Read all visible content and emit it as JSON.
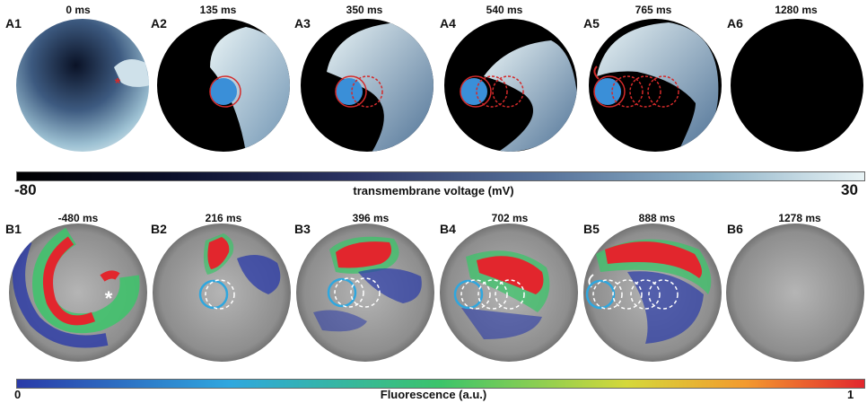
{
  "row_a": {
    "panels": [
      {
        "tag": "A1",
        "time": "0 ms"
      },
      {
        "tag": "A2",
        "time": "135 ms"
      },
      {
        "tag": "A3",
        "time": "350 ms"
      },
      {
        "tag": "A4",
        "time": "540 ms"
      },
      {
        "tag": "A5",
        "time": "765 ms"
      },
      {
        "tag": "A6",
        "time": "1280 ms"
      }
    ],
    "colorbar": {
      "min": "-80",
      "max": "30",
      "title": "transmembrane voltage (mV)"
    }
  },
  "row_b": {
    "panels": [
      {
        "tag": "B1",
        "time": "-480 ms"
      },
      {
        "tag": "B2",
        "time": "216 ms"
      },
      {
        "tag": "B3",
        "time": "396 ms"
      },
      {
        "tag": "B4",
        "time": "702 ms"
      },
      {
        "tag": "B5",
        "time": "888 ms"
      },
      {
        "tag": "B6",
        "time": "1278 ms"
      }
    ],
    "colorbar": {
      "min": "0",
      "max": "1",
      "title": "Fluorescence (a.u.)"
    }
  },
  "colors": {
    "wave_front": "#d9e9ef",
    "tissue_dark": "#000000",
    "dye_high": "#e2262d",
    "dye_mid": "#3cc46a",
    "dye_low": "#2a3aa8",
    "stim_circle": "#3a8fd8",
    "trace_circle_a": "#d42a2a",
    "trace_circle_b": "#ffffff"
  }
}
